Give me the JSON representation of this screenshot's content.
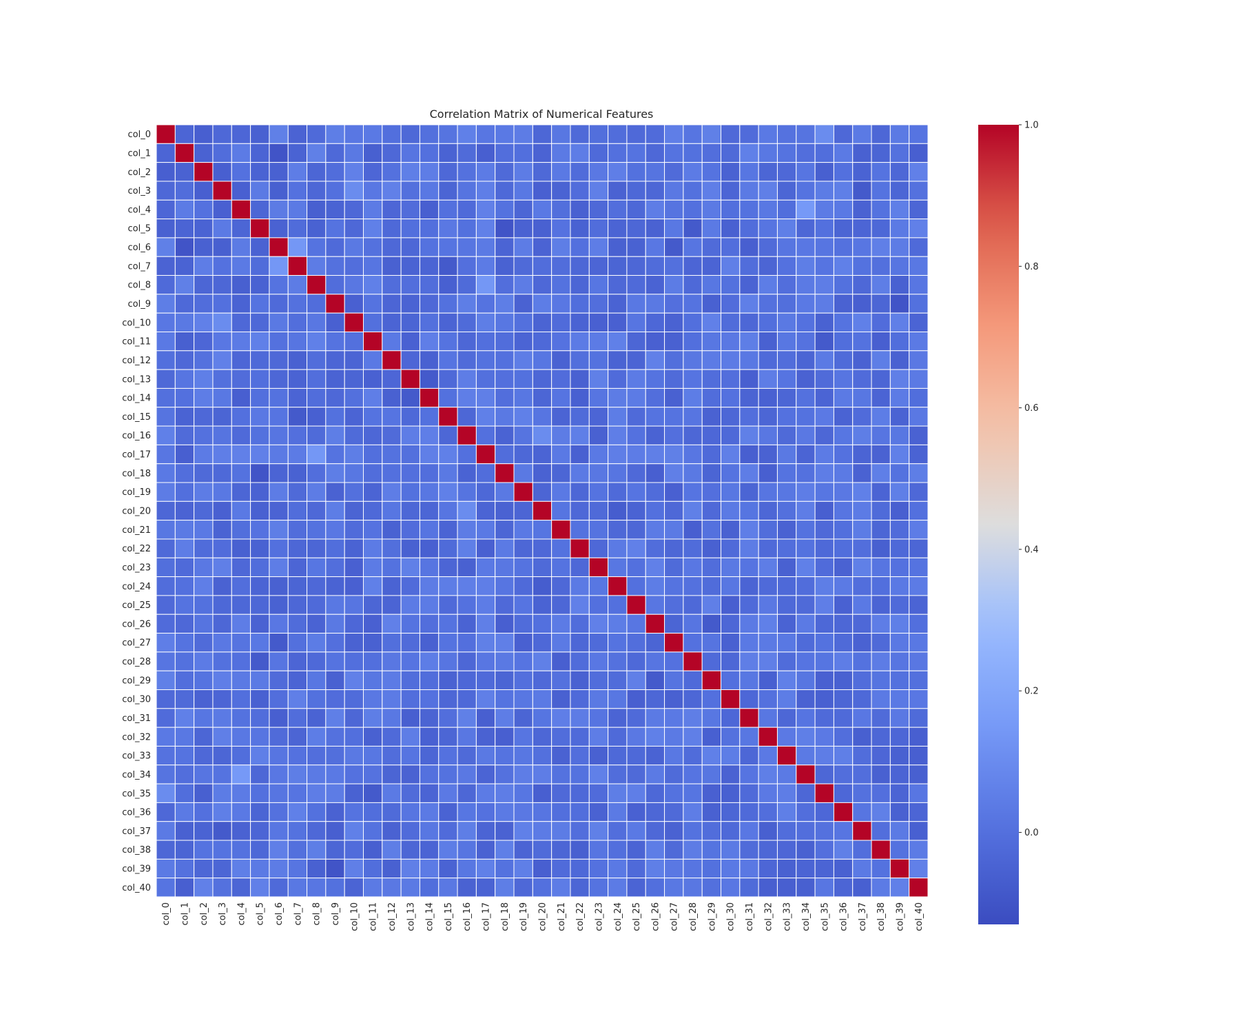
{
  "chart_data": {
    "type": "heatmap",
    "title": "Correlation Matrix of Numerical Features",
    "labels": [
      "col_0",
      "col_1",
      "col_2",
      "col_3",
      "col_4",
      "col_5",
      "col_6",
      "col_7",
      "col_8",
      "col_9",
      "col_10",
      "col_11",
      "col_12",
      "col_13",
      "col_14",
      "col_15",
      "col_16",
      "col_17",
      "col_18",
      "col_19",
      "col_20",
      "col_21",
      "col_22",
      "col_23",
      "col_24",
      "col_25",
      "col_26",
      "col_27",
      "col_28",
      "col_29",
      "col_30",
      "col_31",
      "col_32",
      "col_33",
      "col_34",
      "col_35",
      "col_36",
      "col_37",
      "col_38",
      "col_39",
      "col_40"
    ],
    "vmin": -0.13,
    "vmax": 1.0,
    "colormap": "coolwarm",
    "colorbar_ticks": [
      0.0,
      0.2,
      0.4,
      0.6,
      0.8,
      1.0
    ],
    "colorbar_tick_labels": [
      "0.0",
      "0.2",
      "0.4",
      "0.6",
      "0.8",
      "1.0"
    ],
    "default_value": 0.0,
    "notable_values": [
      [
        0,
        2,
        -0.06
      ],
      [
        1,
        6,
        -0.1
      ],
      [
        1,
        17,
        -0.06
      ],
      [
        2,
        3,
        -0.06
      ],
      [
        3,
        37,
        -0.08
      ],
      [
        4,
        14,
        -0.06
      ],
      [
        4,
        34,
        0.15
      ],
      [
        5,
        18,
        -0.1
      ],
      [
        5,
        28,
        -0.1
      ],
      [
        6,
        7,
        0.14
      ],
      [
        6,
        27,
        -0.1
      ],
      [
        7,
        15,
        -0.08
      ],
      [
        8,
        17,
        0.14
      ],
      [
        9,
        39,
        -0.1
      ],
      [
        10,
        3,
        0.1
      ],
      [
        11,
        35,
        -0.08
      ],
      [
        11,
        38,
        -0.08
      ],
      [
        13,
        14,
        -0.08
      ],
      [
        13,
        31,
        -0.06
      ],
      [
        16,
        20,
        0.1
      ],
      [
        18,
        32,
        -0.06
      ],
      [
        20,
        24,
        -0.07
      ],
      [
        20,
        35,
        -0.06
      ],
      [
        21,
        33,
        -0.05
      ],
      [
        23,
        36,
        -0.05
      ],
      [
        25,
        30,
        -0.06
      ],
      [
        26,
        29,
        -0.08
      ],
      [
        26,
        18,
        -0.06
      ],
      [
        27,
        6,
        -0.08
      ],
      [
        28,
        5,
        -0.08
      ],
      [
        31,
        13,
        -0.06
      ],
      [
        32,
        18,
        -0.06
      ],
      [
        33,
        40,
        -0.06
      ],
      [
        34,
        4,
        0.15
      ],
      [
        35,
        0,
        0.1
      ],
      [
        37,
        9,
        -0.06
      ],
      [
        38,
        11,
        -0.06
      ],
      [
        39,
        9,
        -0.1
      ],
      [
        40,
        1,
        -0.06
      ],
      [
        40,
        32,
        -0.06
      ]
    ]
  },
  "colors": {
    "background": "#ffffff",
    "grid_line": "#ffffff"
  }
}
